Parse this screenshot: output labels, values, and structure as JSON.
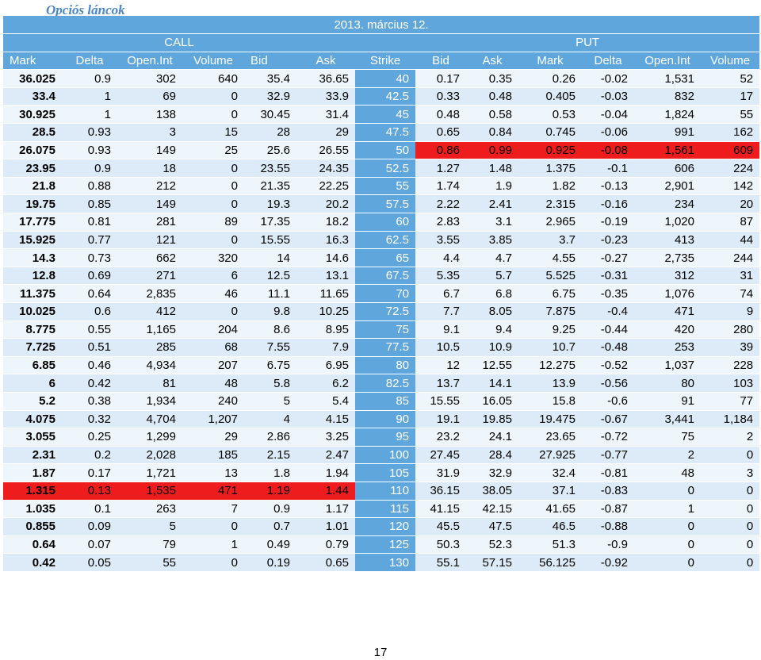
{
  "title": "Opciós láncok",
  "date": "2013. március 12.",
  "call_label": "CALL",
  "put_label": "PUT",
  "columns": [
    "Mark",
    "Delta",
    "Open.Int",
    "Volume",
    "Bid",
    "Ask",
    "Strike",
    "Bid",
    "Ask",
    "Mark",
    "Delta",
    "Open.Int",
    "Volume"
  ],
  "highlight_color": "#ee1c1c",
  "header_color": "#5ea6dc",
  "rows": [
    {
      "c": [
        "36.025",
        "0.9",
        "302",
        "640",
        "35.4",
        "36.65"
      ],
      "s": "40",
      "p": [
        "0.17",
        "0.35",
        "0.26",
        "-0.02",
        "1,531",
        "52"
      ],
      "hl": ""
    },
    {
      "c": [
        "33.4",
        "1",
        "69",
        "0",
        "32.9",
        "33.9"
      ],
      "s": "42.5",
      "p": [
        "0.33",
        "0.48",
        "0.405",
        "-0.03",
        "832",
        "17"
      ],
      "hl": ""
    },
    {
      "c": [
        "30.925",
        "1",
        "138",
        "0",
        "30.45",
        "31.4"
      ],
      "s": "45",
      "p": [
        "0.48",
        "0.58",
        "0.53",
        "-0.04",
        "1,824",
        "55"
      ],
      "hl": ""
    },
    {
      "c": [
        "28.5",
        "0.93",
        "3",
        "15",
        "28",
        "29"
      ],
      "s": "47.5",
      "p": [
        "0.65",
        "0.84",
        "0.745",
        "-0.06",
        "991",
        "162"
      ],
      "hl": ""
    },
    {
      "c": [
        "26.075",
        "0.93",
        "149",
        "25",
        "25.6",
        "26.55"
      ],
      "s": "50",
      "p": [
        "0.86",
        "0.99",
        "0.925",
        "-0.08",
        "1,561",
        "609"
      ],
      "hl": "put"
    },
    {
      "c": [
        "23.95",
        "0.9",
        "18",
        "0",
        "23.55",
        "24.35"
      ],
      "s": "52.5",
      "p": [
        "1.27",
        "1.48",
        "1.375",
        "-0.1",
        "606",
        "224"
      ],
      "hl": ""
    },
    {
      "c": [
        "21.8",
        "0.88",
        "212",
        "0",
        "21.35",
        "22.25"
      ],
      "s": "55",
      "p": [
        "1.74",
        "1.9",
        "1.82",
        "-0.13",
        "2,901",
        "142"
      ],
      "hl": ""
    },
    {
      "c": [
        "19.75",
        "0.85",
        "149",
        "0",
        "19.3",
        "20.2"
      ],
      "s": "57.5",
      "p": [
        "2.22",
        "2.41",
        "2.315",
        "-0.16",
        "234",
        "20"
      ],
      "hl": ""
    },
    {
      "c": [
        "17.775",
        "0.81",
        "281",
        "89",
        "17.35",
        "18.2"
      ],
      "s": "60",
      "p": [
        "2.83",
        "3.1",
        "2.965",
        "-0.19",
        "1,020",
        "87"
      ],
      "hl": ""
    },
    {
      "c": [
        "15.925",
        "0.77",
        "121",
        "0",
        "15.55",
        "16.3"
      ],
      "s": "62.5",
      "p": [
        "3.55",
        "3.85",
        "3.7",
        "-0.23",
        "413",
        "44"
      ],
      "hl": ""
    },
    {
      "c": [
        "14.3",
        "0.73",
        "662",
        "320",
        "14",
        "14.6"
      ],
      "s": "65",
      "p": [
        "4.4",
        "4.7",
        "4.55",
        "-0.27",
        "2,735",
        "244"
      ],
      "hl": ""
    },
    {
      "c": [
        "12.8",
        "0.69",
        "271",
        "6",
        "12.5",
        "13.1"
      ],
      "s": "67.5",
      "p": [
        "5.35",
        "5.7",
        "5.525",
        "-0.31",
        "312",
        "31"
      ],
      "hl": ""
    },
    {
      "c": [
        "11.375",
        "0.64",
        "2,835",
        "46",
        "11.1",
        "11.65"
      ],
      "s": "70",
      "p": [
        "6.7",
        "6.8",
        "6.75",
        "-0.35",
        "1,076",
        "74"
      ],
      "hl": ""
    },
    {
      "c": [
        "10.025",
        "0.6",
        "412",
        "0",
        "9.8",
        "10.25"
      ],
      "s": "72.5",
      "p": [
        "7.7",
        "8.05",
        "7.875",
        "-0.4",
        "471",
        "9"
      ],
      "hl": ""
    },
    {
      "c": [
        "8.775",
        "0.55",
        "1,165",
        "204",
        "8.6",
        "8.95"
      ],
      "s": "75",
      "p": [
        "9.1",
        "9.4",
        "9.25",
        "-0.44",
        "420",
        "280"
      ],
      "hl": ""
    },
    {
      "c": [
        "7.725",
        "0.51",
        "285",
        "68",
        "7.55",
        "7.9"
      ],
      "s": "77.5",
      "p": [
        "10.5",
        "10.9",
        "10.7",
        "-0.48",
        "253",
        "39"
      ],
      "hl": ""
    },
    {
      "c": [
        "6.85",
        "0.46",
        "4,934",
        "207",
        "6.75",
        "6.95"
      ],
      "s": "80",
      "p": [
        "12",
        "12.55",
        "12.275",
        "-0.52",
        "1,037",
        "228"
      ],
      "hl": ""
    },
    {
      "c": [
        "6",
        "0.42",
        "81",
        "48",
        "5.8",
        "6.2"
      ],
      "s": "82.5",
      "p": [
        "13.7",
        "14.1",
        "13.9",
        "-0.56",
        "80",
        "103"
      ],
      "hl": ""
    },
    {
      "c": [
        "5.2",
        "0.38",
        "1,934",
        "240",
        "5",
        "5.4"
      ],
      "s": "85",
      "p": [
        "15.55",
        "16.05",
        "15.8",
        "-0.6",
        "91",
        "77"
      ],
      "hl": ""
    },
    {
      "c": [
        "4.075",
        "0.32",
        "4,704",
        "1,207",
        "4",
        "4.15"
      ],
      "s": "90",
      "p": [
        "19.1",
        "19.85",
        "19.475",
        "-0.67",
        "3,441",
        "1,184"
      ],
      "hl": ""
    },
    {
      "c": [
        "3.055",
        "0.25",
        "1,299",
        "29",
        "2.86",
        "3.25"
      ],
      "s": "95",
      "p": [
        "23.2",
        "24.1",
        "23.65",
        "-0.72",
        "75",
        "2"
      ],
      "hl": ""
    },
    {
      "c": [
        "2.31",
        "0.2",
        "2,028",
        "185",
        "2.15",
        "2.47"
      ],
      "s": "100",
      "p": [
        "27.45",
        "28.4",
        "27.925",
        "-0.77",
        "2",
        "0"
      ],
      "hl": ""
    },
    {
      "c": [
        "1.87",
        "0.17",
        "1,721",
        "13",
        "1.8",
        "1.94"
      ],
      "s": "105",
      "p": [
        "31.9",
        "32.9",
        "32.4",
        "-0.81",
        "48",
        "3"
      ],
      "hl": ""
    },
    {
      "c": [
        "1.315",
        "0.13",
        "1,535",
        "471",
        "1.19",
        "1.44"
      ],
      "s": "110",
      "p": [
        "36.15",
        "38.05",
        "37.1",
        "-0.83",
        "0",
        "0"
      ],
      "hl": "call"
    },
    {
      "c": [
        "1.035",
        "0.1",
        "263",
        "7",
        "0.9",
        "1.17"
      ],
      "s": "115",
      "p": [
        "41.15",
        "42.15",
        "41.65",
        "-0.87",
        "1",
        "0"
      ],
      "hl": ""
    },
    {
      "c": [
        "0.855",
        "0.09",
        "5",
        "0",
        "0.7",
        "1.01"
      ],
      "s": "120",
      "p": [
        "45.5",
        "47.5",
        "46.5",
        "-0.88",
        "0",
        "0"
      ],
      "hl": ""
    },
    {
      "c": [
        "0.64",
        "0.07",
        "79",
        "1",
        "0.49",
        "0.79"
      ],
      "s": "125",
      "p": [
        "50.3",
        "52.3",
        "51.3",
        "-0.9",
        "0",
        "0"
      ],
      "hl": ""
    },
    {
      "c": [
        "0.42",
        "0.05",
        "55",
        "0",
        "0.19",
        "0.65"
      ],
      "s": "130",
      "p": [
        "55.1",
        "57.15",
        "56.125",
        "-0.92",
        "0",
        "0"
      ],
      "hl": ""
    }
  ],
  "page_number": "17"
}
